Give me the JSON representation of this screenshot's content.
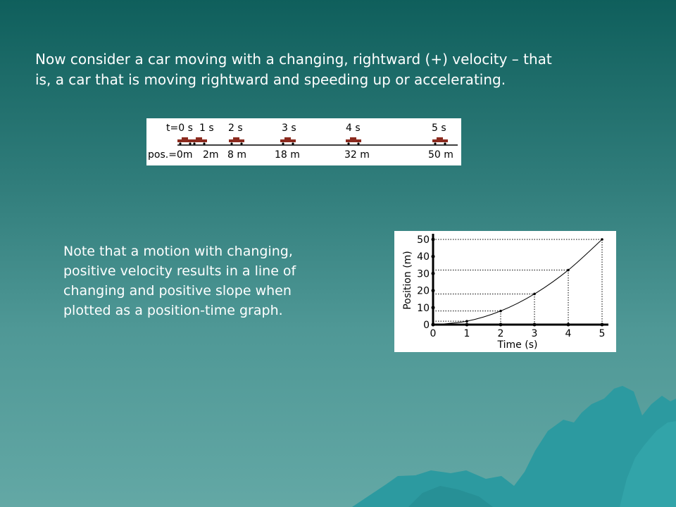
{
  "intro_lines": [
    "Now consider a car moving with a changing, rightward (+) velocity – that",
    "is, a car that is moving rightward and speeding up or accelerating."
  ],
  "note_lines": [
    "Note that a motion with changing,",
    "positive velocity results in a line of",
    "changing and positive slope when",
    "plotted as a position-time graph."
  ],
  "motion_diagram": {
    "time_labels": [
      "t=0 s",
      "1 s",
      "2 s",
      "3 s",
      "4 s",
      "5 s"
    ],
    "position_labels": [
      "pos.=0m",
      "2m",
      "8 m",
      "18 m",
      "32 m",
      "50 m"
    ],
    "positions_m": [
      0,
      2,
      8,
      18,
      32,
      50
    ],
    "car_color": "#8b2a1e"
  },
  "chart_data": {
    "type": "line",
    "xlabel": "Time (s)",
    "ylabel": "Position (m)",
    "x_ticks": [
      "0",
      "1",
      "2",
      "3",
      "4",
      "5"
    ],
    "y_ticks": [
      "0",
      "10",
      "20",
      "30",
      "40",
      "50"
    ],
    "xlim": [
      0,
      5
    ],
    "ylim": [
      0,
      50
    ],
    "x": [
      0,
      1,
      2,
      3,
      4,
      5
    ],
    "y": [
      0,
      2,
      8,
      18,
      32,
      50
    ],
    "dotted_guides": true
  }
}
